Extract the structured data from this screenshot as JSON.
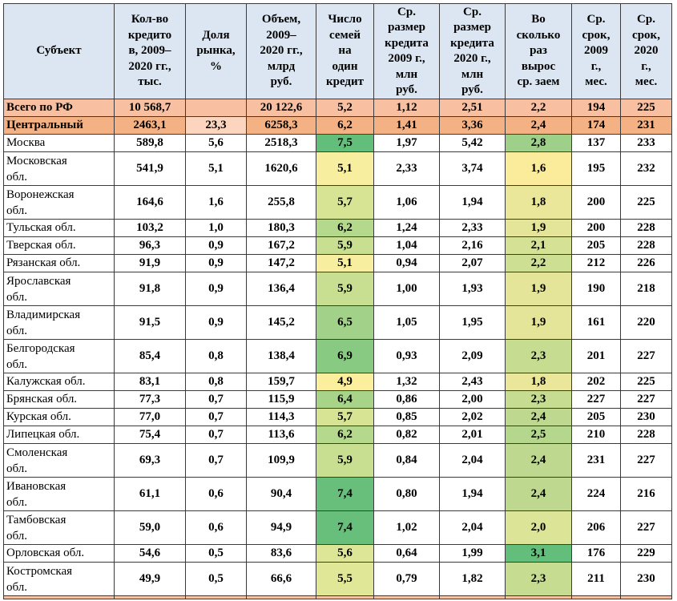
{
  "headers": [
    "Субъект",
    "Кол-во кредито в, 2009–2020 гг., тыс.",
    "Доля рынка, %",
    "Объем, 2009–2020 гг., млрд руб.",
    "Число семей на один кредит",
    "Ср. размер кредита 2009 г., млн руб.",
    "Ср. размер кредита 2020 г., млн руб.",
    "Во сколько раз вырос ср. заем",
    "Ср. срок, 2009 г., мес.",
    "Ср. срок, 2020 г., мес."
  ],
  "header_lines": [
    [
      "Субъект"
    ],
    [
      "Кол-во",
      "кредито",
      "в, 2009–",
      "2020 гг.,",
      "тыс."
    ],
    [
      "Доля",
      "рынка,",
      "%"
    ],
    [
      "Объем,",
      "2009–",
      "2020 гг.,",
      "млрд",
      "руб."
    ],
    [
      "Число",
      "семей",
      "на",
      "один",
      "кредит"
    ],
    [
      "Ср.",
      "размер",
      "кредита",
      "2009 г.,",
      "млн",
      "руб."
    ],
    [
      "Ср.",
      "размер",
      "кредита",
      "2020 г.,",
      "млн",
      "руб."
    ],
    [
      "Во",
      "сколько",
      "раз",
      "вырос",
      "ср. заем"
    ],
    [
      "Ср.",
      "срок,",
      "2009",
      "г.,",
      "мес."
    ],
    [
      "Ср.",
      "срок,",
      "2020",
      "г.,",
      "мес."
    ]
  ],
  "rows": [
    {
      "name_lines": [
        "Всего по РФ"
      ],
      "count": "10 568,7",
      "share": "",
      "volume": "20 122,6",
      "families": "5,2",
      "avg2009": "1,12",
      "avg2020": "2,51",
      "growth": "2,2",
      "term2009": "194",
      "term2020": "225",
      "kind": "total"
    },
    {
      "name_lines": [
        "Центральный"
      ],
      "count": "2463,1",
      "share": "23,3",
      "volume": "6258,3",
      "families": "6,2",
      "avg2009": "1,41",
      "avg2020": "3,36",
      "growth": "2,4",
      "term2009": "174",
      "term2020": "231",
      "kind": "region"
    },
    {
      "name_lines": [
        "Москва"
      ],
      "count": "589,8",
      "share": "5,6",
      "volume": "2518,3",
      "families": "7,5",
      "avg2009": "1,97",
      "avg2020": "5,42",
      "growth": "2,8",
      "term2009": "137",
      "term2020": "233",
      "families_color": "#63be7b",
      "growth_color": "#9fd08a"
    },
    {
      "name_lines": [
        "Московская",
        "обл."
      ],
      "count": "541,9",
      "share": "5,1",
      "volume": "1620,6",
      "families": "5,1",
      "avg2009": "2,33",
      "avg2020": "3,74",
      "growth": "1,6",
      "term2009": "195",
      "term2020": "232",
      "families_color": "#f7ee9f",
      "growth_color": "#fbec9b"
    },
    {
      "name_lines": [
        "Воронежская",
        "обл."
      ],
      "count": "164,6",
      "share": "1,6",
      "volume": "255,8",
      "families": "5,7",
      "avg2009": "1,06",
      "avg2020": "1,94",
      "growth": "1,8",
      "term2009": "200",
      "term2020": "225",
      "families_color": "#d6e494",
      "growth_color": "#eae69a"
    },
    {
      "name_lines": [
        "Тульская обл."
      ],
      "count": "103,2",
      "share": "1,0",
      "volume": "180,3",
      "families": "6,2",
      "avg2009": "1,24",
      "avg2020": "2,33",
      "growth": "1,9",
      "term2009": "200",
      "term2020": "228",
      "families_color": "#b4d88c",
      "growth_color": "#e4e598"
    },
    {
      "name_lines": [
        "Тверская обл."
      ],
      "count": "96,3",
      "share": "0,9",
      "volume": "167,2",
      "families": "5,9",
      "avg2009": "1,04",
      "avg2020": "2,16",
      "growth": "2,1",
      "term2009": "205",
      "term2020": "228",
      "families_color": "#c8df91",
      "growth_color": "#d5e295"
    },
    {
      "name_lines": [
        "Рязанская обл."
      ],
      "count": "91,9",
      "share": "0,9",
      "volume": "147,2",
      "families": "5,1",
      "avg2009": "0,94",
      "avg2020": "2,07",
      "growth": "2,2",
      "term2009": "212",
      "term2020": "226",
      "families_color": "#f7ee9f",
      "growth_color": "#cddf93"
    },
    {
      "name_lines": [
        "Ярославская",
        "обл."
      ],
      "count": "91,8",
      "share": "0,9",
      "volume": "136,4",
      "families": "5,9",
      "avg2009": "1,00",
      "avg2020": "1,93",
      "growth": "1,9",
      "term2009": "190",
      "term2020": "218",
      "families_color": "#c8df91",
      "growth_color": "#e4e598"
    },
    {
      "name_lines": [
        "Владимирская",
        "обл."
      ],
      "count": "91,5",
      "share": "0,9",
      "volume": "145,2",
      "families": "6,5",
      "avg2009": "1,05",
      "avg2020": "1,95",
      "growth": "1,9",
      "term2009": "161",
      "term2020": "220",
      "families_color": "#a2d289",
      "growth_color": "#e4e598"
    },
    {
      "name_lines": [
        "Белгородская",
        "обл."
      ],
      "count": "85,4",
      "share": "0,8",
      "volume": "138,4",
      "families": "6,9",
      "avg2009": "0,93",
      "avg2020": "2,09",
      "growth": "2,3",
      "term2009": "201",
      "term2020": "227",
      "families_color": "#89ca83",
      "growth_color": "#c6dc91"
    },
    {
      "name_lines": [
        "Калужская обл."
      ],
      "count": "83,1",
      "share": "0,8",
      "volume": "159,7",
      "families": "4,9",
      "avg2009": "1,32",
      "avg2020": "2,43",
      "growth": "1,8",
      "term2009": "202",
      "term2020": "225",
      "families_color": "#fbef9e",
      "growth_color": "#eae69a"
    },
    {
      "name_lines": [
        "Брянская обл."
      ],
      "count": "77,3",
      "share": "0,7",
      "volume": "115,9",
      "families": "6,4",
      "avg2009": "0,86",
      "avg2020": "2,00",
      "growth": "2,3",
      "term2009": "227",
      "term2020": "227",
      "families_color": "#a8d48a",
      "growth_color": "#c6dc91"
    },
    {
      "name_lines": [
        "Курская обл."
      ],
      "count": "77,0",
      "share": "0,7",
      "volume": "114,3",
      "families": "5,7",
      "avg2009": "0,85",
      "avg2020": "2,02",
      "growth": "2,4",
      "term2009": "205",
      "term2020": "230",
      "families_color": "#d6e494",
      "growth_color": "#bed98f"
    },
    {
      "name_lines": [
        "Липецкая обл."
      ],
      "count": "75,4",
      "share": "0,7",
      "volume": "113,6",
      "families": "6,2",
      "avg2009": "0,82",
      "avg2020": "2,01",
      "growth": "2,5",
      "term2009": "210",
      "term2020": "228",
      "families_color": "#b4d88c",
      "growth_color": "#b5d68d"
    },
    {
      "name_lines": [
        "Смоленская",
        "обл."
      ],
      "count": "69,3",
      "share": "0,7",
      "volume": "109,9",
      "families": "5,9",
      "avg2009": "0,84",
      "avg2020": "2,04",
      "growth": "2,4",
      "term2009": "231",
      "term2020": "227",
      "families_color": "#c8df91",
      "growth_color": "#bed98f"
    },
    {
      "name_lines": [
        "Ивановская",
        "обл."
      ],
      "count": "61,1",
      "share": "0,6",
      "volume": "90,4",
      "families": "7,4",
      "avg2009": "0,80",
      "avg2020": "1,94",
      "growth": "2,4",
      "term2009": "224",
      "term2020": "216",
      "families_color": "#68bf7c",
      "growth_color": "#bed98f"
    },
    {
      "name_lines": [
        "Тамбовская",
        "обл."
      ],
      "count": "59,0",
      "share": "0,6",
      "volume": "94,9",
      "families": "7,4",
      "avg2009": "1,02",
      "avg2020": "2,04",
      "growth": "2,0",
      "term2009": "206",
      "term2020": "227",
      "families_color": "#68bf7c",
      "growth_color": "#dce497"
    },
    {
      "name_lines": [
        "Орловская обл."
      ],
      "count": "54,6",
      "share": "0,5",
      "volume": "83,6",
      "families": "5,6",
      "avg2009": "0,64",
      "avg2020": "1,99",
      "growth": "3,1",
      "term2009": "176",
      "term2020": "229",
      "families_color": "#dce696",
      "growth_color": "#63be7b"
    },
    {
      "name_lines": [
        "Костромская",
        "обл."
      ],
      "count": "49,9",
      "share": "0,5",
      "volume": "66,6",
      "families": "5,5",
      "avg2009": "0,79",
      "avg2020": "1,82",
      "growth": "2,3",
      "term2009": "211",
      "term2020": "230",
      "families_color": "#e0e797",
      "growth_color": "#c6dc91"
    }
  ]
}
